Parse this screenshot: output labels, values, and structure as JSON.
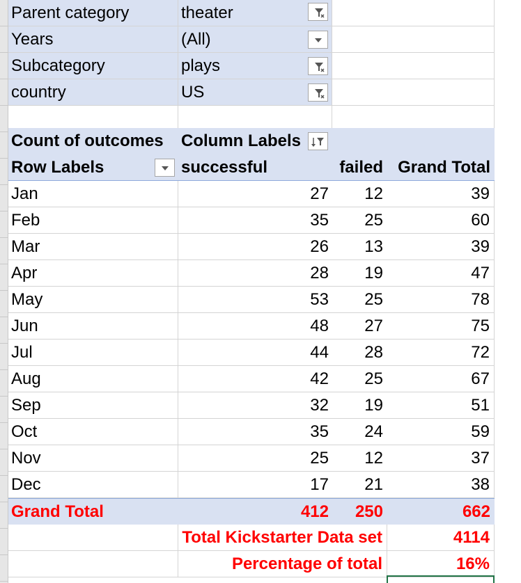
{
  "filters": [
    {
      "label": "Parent category",
      "value": "theater",
      "icon": "filter-applied-icon"
    },
    {
      "label": "Years",
      "value": "(All)",
      "icon": "dropdown-arrow-icon"
    },
    {
      "label": "Subcategory",
      "value": "plays",
      "icon": "filter-applied-icon"
    },
    {
      "label": "country",
      "value": "US",
      "icon": "filter-applied-icon"
    }
  ],
  "pivot": {
    "corner_label": "Count of outcomes",
    "column_labels": "Column Labels",
    "row_labels": "Row Labels",
    "col_successful": "successful",
    "col_failed": "failed",
    "col_grand_total": "Grand Total",
    "rows": [
      {
        "month": "Jan",
        "successful": "27",
        "failed": "12",
        "total": "39"
      },
      {
        "month": "Feb",
        "successful": "35",
        "failed": "25",
        "total": "60"
      },
      {
        "month": "Mar",
        "successful": "26",
        "failed": "13",
        "total": "39"
      },
      {
        "month": "Apr",
        "successful": "28",
        "failed": "19",
        "total": "47"
      },
      {
        "month": "May",
        "successful": "53",
        "failed": "25",
        "total": "78"
      },
      {
        "month": "Jun",
        "successful": "48",
        "failed": "27",
        "total": "75"
      },
      {
        "month": "Jul",
        "successful": "44",
        "failed": "28",
        "total": "72"
      },
      {
        "month": "Aug",
        "successful": "42",
        "failed": "25",
        "total": "67"
      },
      {
        "month": "Sep",
        "successful": "32",
        "failed": "19",
        "total": "51"
      },
      {
        "month": "Oct",
        "successful": "35",
        "failed": "24",
        "total": "59"
      },
      {
        "month": "Nov",
        "successful": "25",
        "failed": "12",
        "total": "37"
      },
      {
        "month": "Dec",
        "successful": "17",
        "failed": "21",
        "total": "38"
      }
    ],
    "grand_total": {
      "label": "Grand Total",
      "successful": "412",
      "failed": "250",
      "total": "662"
    }
  },
  "summary": {
    "kickstarter_label": "Total Kickstarter Data set",
    "kickstarter_value": "4114",
    "percentage_label": "Percentage of total",
    "percentage_value": "16%"
  },
  "colors": {
    "header_fill": "#d9e1f2",
    "emphasis_text": "#ff0000",
    "selection": "#217346"
  }
}
